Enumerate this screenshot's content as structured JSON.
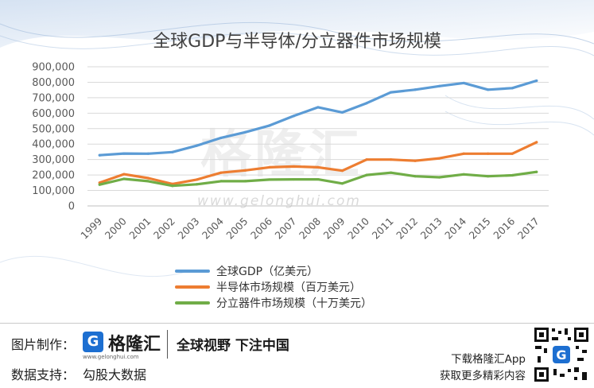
{
  "title": "全球GDP与半导体/分立器件市场规模",
  "watermark": {
    "cn": "格隆汇",
    "en": "www.gelonghui.com"
  },
  "chart_data": {
    "type": "line",
    "title": "全球GDP与半导体/分立器件市场规模",
    "categories": [
      "1999",
      "2000",
      "2001",
      "2002",
      "2003",
      "2004",
      "2005",
      "2006",
      "2007",
      "2008",
      "2009",
      "2010",
      "2011",
      "2012",
      "2013",
      "2014",
      "2015",
      "2016",
      "2017"
    ],
    "series": [
      {
        "name": "全球GDP（亿美元）",
        "color": "#5b9bd5",
        "values": [
          328000,
          339000,
          338000,
          348000,
          390000,
          440000,
          477000,
          520000,
          582000,
          638000,
          605000,
          665000,
          735000,
          752000,
          775000,
          795000,
          752000,
          762000,
          810000
        ]
      },
      {
        "name": "半导体市场规模（百万美元）",
        "color": "#ed7d31",
        "values": [
          150000,
          205000,
          180000,
          142000,
          170000,
          215000,
          230000,
          250000,
          255000,
          250000,
          228000,
          300000,
          300000,
          292000,
          308000,
          338000,
          338000,
          338000,
          412000
        ]
      },
      {
        "name": "分立器件市场规模（十万美元）",
        "color": "#70ad47",
        "values": [
          138000,
          175000,
          160000,
          130000,
          140000,
          160000,
          160000,
          170000,
          172000,
          172000,
          145000,
          200000,
          215000,
          192000,
          185000,
          204000,
          192000,
          198000,
          220000
        ]
      }
    ],
    "y_ticks": [
      "0",
      "100,000",
      "200,000",
      "300,000",
      "400,000",
      "500,000",
      "600,000",
      "700,000",
      "800,000",
      "900,000"
    ],
    "ylim": [
      0,
      900000
    ],
    "grid": true,
    "legend_position": "bottom"
  },
  "footer": {
    "image_credit_label": "图片制作：",
    "logo_text": "格隆汇",
    "logo_url": "www.gelonghui.com",
    "slogan": "全球视野 下注中国",
    "data_support_label": "数据支持：",
    "data_support_value": "勾股大数据",
    "app_line1": "下载格隆汇App",
    "app_line2": "获取更多精彩内容"
  },
  "colors": {
    "accent": "#1d6fd1",
    "grid": "#d9d9d9",
    "axis_text": "#595959"
  }
}
